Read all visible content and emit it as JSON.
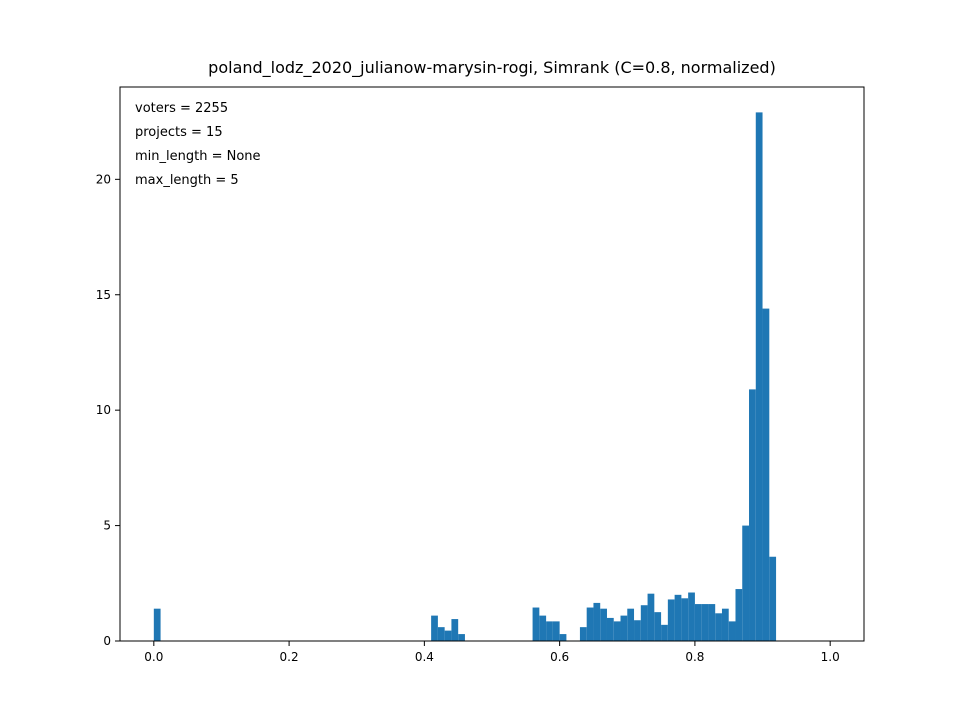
{
  "chart_data": {
    "type": "bar",
    "title": "poland_lodz_2020_julianow-marysin-rogi, Simrank (C=0.8, normalized)",
    "xlabel": "",
    "ylabel": "",
    "xlim": [
      -0.05,
      1.05
    ],
    "ylim": [
      0,
      24
    ],
    "bin_width": 0.01,
    "color": "#1f77b4",
    "xticks": [
      0.0,
      0.2,
      0.4,
      0.6,
      0.8,
      1.0
    ],
    "xtick_labels": [
      "0.0",
      "0.2",
      "0.4",
      "0.6",
      "0.8",
      "1.0"
    ],
    "yticks": [
      0,
      5,
      10,
      15,
      20
    ],
    "ytick_labels": [
      "0",
      "5",
      "10",
      "15",
      "20"
    ],
    "grid": false,
    "annotations": [
      "voters = 2255",
      "projects = 15",
      "min_length = None",
      "max_length = 5"
    ],
    "bins": [
      {
        "x": 0.0,
        "value": 1.4
      },
      {
        "x": 0.41,
        "value": 1.1
      },
      {
        "x": 0.42,
        "value": 0.6
      },
      {
        "x": 0.43,
        "value": 0.45
      },
      {
        "x": 0.44,
        "value": 0.95
      },
      {
        "x": 0.45,
        "value": 0.3
      },
      {
        "x": 0.56,
        "value": 1.45
      },
      {
        "x": 0.57,
        "value": 1.1
      },
      {
        "x": 0.58,
        "value": 0.85
      },
      {
        "x": 0.59,
        "value": 0.85
      },
      {
        "x": 0.6,
        "value": 0.3
      },
      {
        "x": 0.63,
        "value": 0.6
      },
      {
        "x": 0.64,
        "value": 1.45
      },
      {
        "x": 0.65,
        "value": 1.65
      },
      {
        "x": 0.66,
        "value": 1.4
      },
      {
        "x": 0.67,
        "value": 1.0
      },
      {
        "x": 0.68,
        "value": 0.85
      },
      {
        "x": 0.69,
        "value": 1.1
      },
      {
        "x": 0.7,
        "value": 1.4
      },
      {
        "x": 0.71,
        "value": 0.9
      },
      {
        "x": 0.72,
        "value": 1.55
      },
      {
        "x": 0.73,
        "value": 2.05
      },
      {
        "x": 0.74,
        "value": 1.25
      },
      {
        "x": 0.75,
        "value": 0.7
      },
      {
        "x": 0.76,
        "value": 1.8
      },
      {
        "x": 0.77,
        "value": 2.0
      },
      {
        "x": 0.78,
        "value": 1.85
      },
      {
        "x": 0.79,
        "value": 2.1
      },
      {
        "x": 0.8,
        "value": 1.6
      },
      {
        "x": 0.81,
        "value": 1.6
      },
      {
        "x": 0.82,
        "value": 1.6
      },
      {
        "x": 0.83,
        "value": 1.2
      },
      {
        "x": 0.84,
        "value": 1.4
      },
      {
        "x": 0.85,
        "value": 0.85
      },
      {
        "x": 0.86,
        "value": 2.25
      },
      {
        "x": 0.87,
        "value": 5.0
      },
      {
        "x": 0.88,
        "value": 10.9
      },
      {
        "x": 0.89,
        "value": 22.9
      },
      {
        "x": 0.9,
        "value": 14.4
      },
      {
        "x": 0.91,
        "value": 3.65
      }
    ]
  }
}
